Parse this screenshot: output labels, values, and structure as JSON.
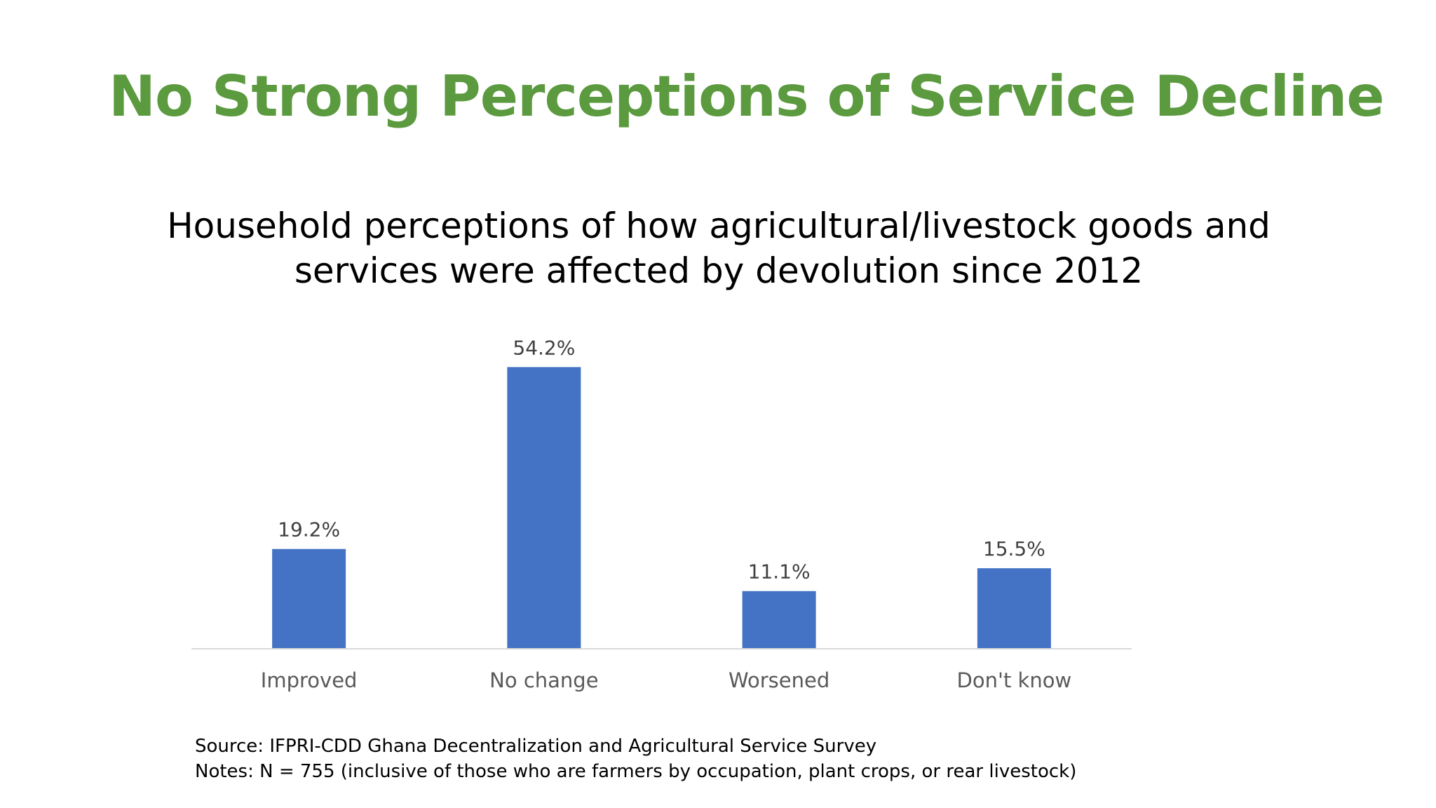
{
  "slide": {
    "title": "No Strong Perceptions of Service Decline",
    "title_color": "#5B9A3F",
    "chart_title_line1": "Household perceptions of how agricultural/livestock goods and",
    "chart_title_line2": "services were affected by devolution since 2012",
    "source": "Source: IFPRI-CDD Ghana Decentralization and Agricultural Service Survey",
    "notes": "Notes: N = 755 (inclusive of those who are farmers by occupation, plant crops, or rear livestock)"
  },
  "chart_data": {
    "type": "bar",
    "title": "Household perceptions of how agricultural/livestock goods and services were affected by devolution since 2012",
    "categories": [
      "Improved",
      "No change",
      "Worsened",
      "Don't know"
    ],
    "values": [
      19.2,
      54.2,
      11.1,
      15.5
    ],
    "data_labels": [
      "19.2%",
      "54.2%",
      "11.1%",
      "15.5%"
    ],
    "unit": "%",
    "xlabel": "",
    "ylabel": "",
    "grid": false,
    "legend": "none",
    "bar_color": "#4472C4",
    "label_color": "#404040",
    "axis_color": "#D9D9D9"
  }
}
